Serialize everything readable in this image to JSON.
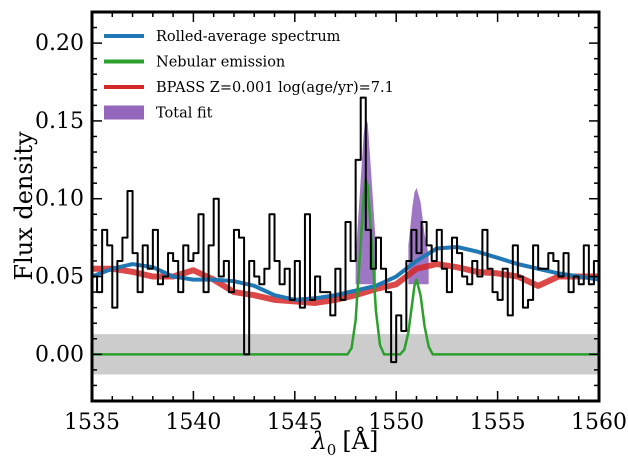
{
  "chart_data": {
    "type": "line",
    "xlabel_symbol": "λ",
    "xlabel_subscript": "0",
    "xlabel_unit": "[Å]",
    "ylabel": "Flux density",
    "xlim": [
      1535,
      1560
    ],
    "ylim": [
      -0.03,
      0.22
    ],
    "xticks": [
      1535,
      1540,
      1545,
      1550,
      1555,
      1560
    ],
    "yticks": [
      0.0,
      0.05,
      0.1,
      0.15,
      0.2
    ],
    "ytick_labels": [
      "0.00",
      "0.05",
      "0.10",
      "0.15",
      "0.20"
    ],
    "grid": false,
    "legend_position": "top-left",
    "legend": [
      {
        "label": "Rolled-average spectrum",
        "color": "#1f77b4",
        "kind": "line"
      },
      {
        "label": "Nebular emission",
        "color": "#2ca02c",
        "kind": "line"
      },
      {
        "label": "BPASS Z=0.001 log(age/yr)=7.1",
        "color": "#d62728",
        "kind": "line"
      },
      {
        "label": "Total fit",
        "color": "#9467bd",
        "kind": "patch"
      }
    ],
    "error_band": {
      "color": "#cccccc",
      "x": [
        1535,
        1540,
        1545,
        1550,
        1555,
        1560
      ],
      "upper": [
        0.013,
        0.013,
        0.013,
        0.013,
        0.013,
        0.013
      ],
      "lower": [
        -0.013,
        -0.013,
        -0.013,
        -0.013,
        -0.013,
        -0.013
      ]
    },
    "series": [
      {
        "name": "Observed spectrum",
        "style": "step",
        "color": "#000000",
        "x": [
          1535.0,
          1535.25,
          1535.5,
          1535.75,
          1536.0,
          1536.25,
          1536.5,
          1536.75,
          1537.0,
          1537.25,
          1537.5,
          1537.75,
          1538.0,
          1538.25,
          1538.5,
          1538.75,
          1539.0,
          1539.25,
          1539.5,
          1539.75,
          1540.0,
          1540.25,
          1540.5,
          1540.75,
          1541.0,
          1541.25,
          1541.5,
          1541.75,
          1542.0,
          1542.25,
          1542.5,
          1542.75,
          1543.0,
          1543.25,
          1543.5,
          1543.75,
          1544.0,
          1544.25,
          1544.5,
          1544.75,
          1545.0,
          1545.25,
          1545.5,
          1545.75,
          1546.0,
          1546.25,
          1546.5,
          1546.75,
          1547.0,
          1547.25,
          1547.5,
          1547.75,
          1548.0,
          1548.25,
          1548.5,
          1548.75,
          1549.0,
          1549.25,
          1549.5,
          1549.75,
          1550.0,
          1550.25,
          1550.5,
          1550.75,
          1551.0,
          1551.25,
          1551.5,
          1551.75,
          1552.0,
          1552.25,
          1552.5,
          1552.75,
          1553.0,
          1553.25,
          1553.5,
          1553.75,
          1554.0,
          1554.25,
          1554.5,
          1554.75,
          1555.0,
          1555.25,
          1555.5,
          1555.75,
          1556.0,
          1556.25,
          1556.5,
          1556.75,
          1557.0,
          1557.25,
          1557.5,
          1557.75,
          1558.0,
          1558.25,
          1558.5,
          1558.75,
          1559.0,
          1559.25,
          1559.5,
          1559.75
        ],
        "y": [
          0.05,
          0.04,
          0.08,
          0.07,
          0.03,
          0.06,
          0.075,
          0.105,
          0.065,
          0.04,
          0.07,
          0.055,
          0.08,
          0.045,
          0.05,
          0.065,
          0.06,
          0.04,
          0.07,
          0.06,
          0.065,
          0.09,
          0.04,
          0.07,
          0.1,
          0.05,
          0.06,
          0.04,
          0.08,
          0.075,
          0.0,
          0.06,
          0.05,
          0.045,
          0.055,
          0.09,
          0.06,
          0.045,
          0.055,
          0.035,
          0.06,
          0.03,
          0.09,
          0.035,
          0.05,
          0.04,
          0.04,
          0.025,
          0.055,
          0.035,
          0.085,
          0.06,
          0.125,
          0.165,
          0.08,
          0.055,
          0.075,
          0.055,
          0.04,
          -0.005,
          0.025,
          0.015,
          0.06,
          0.08,
          0.065,
          0.085,
          0.07,
          0.06,
          0.08,
          0.055,
          0.04,
          0.075,
          0.065,
          0.05,
          0.045,
          0.06,
          0.05,
          0.08,
          0.055,
          0.04,
          0.035,
          0.055,
          0.025,
          0.07,
          0.05,
          0.03,
          0.035,
          0.07,
          0.055,
          0.055,
          0.065,
          0.06,
          0.05,
          0.065,
          0.04,
          0.05,
          0.045,
          0.07,
          0.045,
          0.06
        ]
      },
      {
        "name": "BPASS Z=0.001 log(age/yr)=7.1",
        "style": "line",
        "color": "#d62728",
        "x": [
          1535,
          1536,
          1537,
          1538,
          1539,
          1540,
          1541,
          1542,
          1543,
          1544,
          1545,
          1546,
          1547,
          1548,
          1549,
          1550,
          1551,
          1552,
          1553,
          1554,
          1555,
          1556,
          1557,
          1558,
          1559,
          1560
        ],
        "y": [
          0.055,
          0.055,
          0.053,
          0.05,
          0.05,
          0.054,
          0.048,
          0.04,
          0.038,
          0.035,
          0.034,
          0.033,
          0.035,
          0.038,
          0.042,
          0.045,
          0.055,
          0.058,
          0.056,
          0.053,
          0.052,
          0.05,
          0.044,
          0.05,
          0.05,
          0.05
        ]
      },
      {
        "name": "Rolled-average spectrum",
        "style": "line",
        "color": "#1f77b4",
        "x": [
          1535,
          1536,
          1537,
          1538,
          1539,
          1540,
          1541,
          1542,
          1543,
          1544,
          1545,
          1546,
          1547,
          1548,
          1549,
          1550,
          1551,
          1552,
          1553,
          1554,
          1555,
          1556,
          1557,
          1558,
          1559,
          1560
        ],
        "y": [
          0.05,
          0.055,
          0.058,
          0.056,
          0.05,
          0.048,
          0.048,
          0.047,
          0.044,
          0.038,
          0.035,
          0.036,
          0.038,
          0.041,
          0.044,
          0.05,
          0.06,
          0.068,
          0.069,
          0.066,
          0.062,
          0.058,
          0.055,
          0.052,
          0.05,
          0.048
        ]
      },
      {
        "name": "Nebular emission",
        "style": "line",
        "color": "#2ca02c",
        "x": [
          1535,
          1547.6,
          1547.8,
          1548.0,
          1548.2,
          1548.4,
          1548.5,
          1548.6,
          1548.8,
          1549.0,
          1549.2,
          1549.4,
          1550.2,
          1550.4,
          1550.6,
          1550.8,
          1550.9,
          1551.0,
          1551.2,
          1551.4,
          1551.6,
          1551.8,
          1560
        ],
        "y": [
          0.0,
          0.0,
          0.004,
          0.022,
          0.062,
          0.102,
          0.112,
          0.108,
          0.07,
          0.028,
          0.006,
          0.0,
          0.0,
          0.003,
          0.014,
          0.034,
          0.044,
          0.048,
          0.038,
          0.018,
          0.005,
          0.0,
          0.0
        ]
      }
    ],
    "total_fit_fill": {
      "color": "#9467bd",
      "regions": [
        {
          "x": [
            1548.0,
            1548.2,
            1548.4,
            1548.5,
            1548.6,
            1548.8,
            1549.0
          ],
          "upper": [
            0.062,
            0.102,
            0.142,
            0.152,
            0.148,
            0.11,
            0.07
          ]
        },
        {
          "x": [
            1550.6,
            1550.8,
            1550.9,
            1551.0,
            1551.2,
            1551.4,
            1551.6
          ],
          "upper": [
            0.07,
            0.095,
            0.104,
            0.107,
            0.098,
            0.077,
            0.064
          ]
        }
      ]
    }
  }
}
